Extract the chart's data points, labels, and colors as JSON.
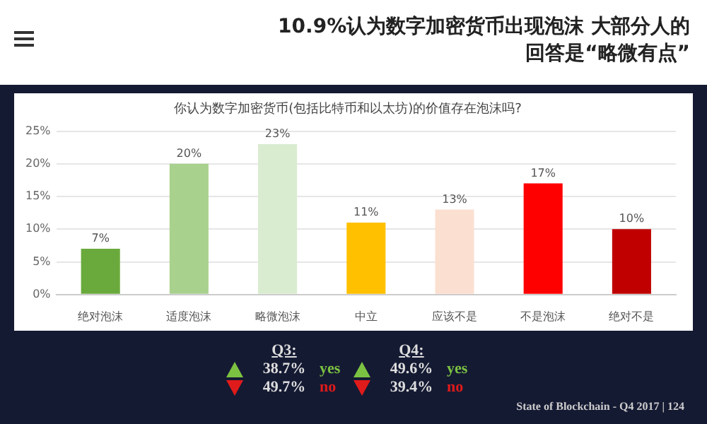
{
  "chart_data": {
    "type": "bar",
    "title": "你认为数字加密货币(包括比特币和以太坊)的价值存在泡沫吗?",
    "subtitle": "10.9%认为数字加密货币出现泡沫 大部分人的回答是“略微有点”",
    "categories": [
      "绝对泡沫",
      "适度泡沫",
      "略微泡沫",
      "中立",
      "应该不是",
      "不是泡沫",
      "绝对不是"
    ],
    "values": [
      7,
      20,
      23,
      11,
      13,
      17,
      10
    ],
    "colors": [
      "#6aaa3c",
      "#a9d18e",
      "#d9ecd0",
      "#ffc000",
      "#fbe0d2",
      "#ff0000",
      "#c00000"
    ],
    "value_labels": [
      "7%",
      "20%",
      "23%",
      "11%",
      "13%",
      "17%",
      "10%"
    ],
    "ylim": [
      0,
      25
    ],
    "yticks": [
      {
        "value": 0,
        "label": "0%"
      },
      {
        "value": 5,
        "label": "5%"
      },
      {
        "value": 10,
        "label": "10%"
      },
      {
        "value": 15,
        "label": "15%"
      },
      {
        "value": 20,
        "label": "20%"
      },
      {
        "value": 25,
        "label": "25%"
      }
    ],
    "grid": "y",
    "legend": false,
    "annotations": [
      "Q3:",
      "38.7%",
      "yes",
      "49.7%",
      "no",
      "Q4:",
      "49.6%",
      "yes",
      "39.4%",
      "no",
      "State of Blockchain - Q4 2017 | 124"
    ]
  }
}
